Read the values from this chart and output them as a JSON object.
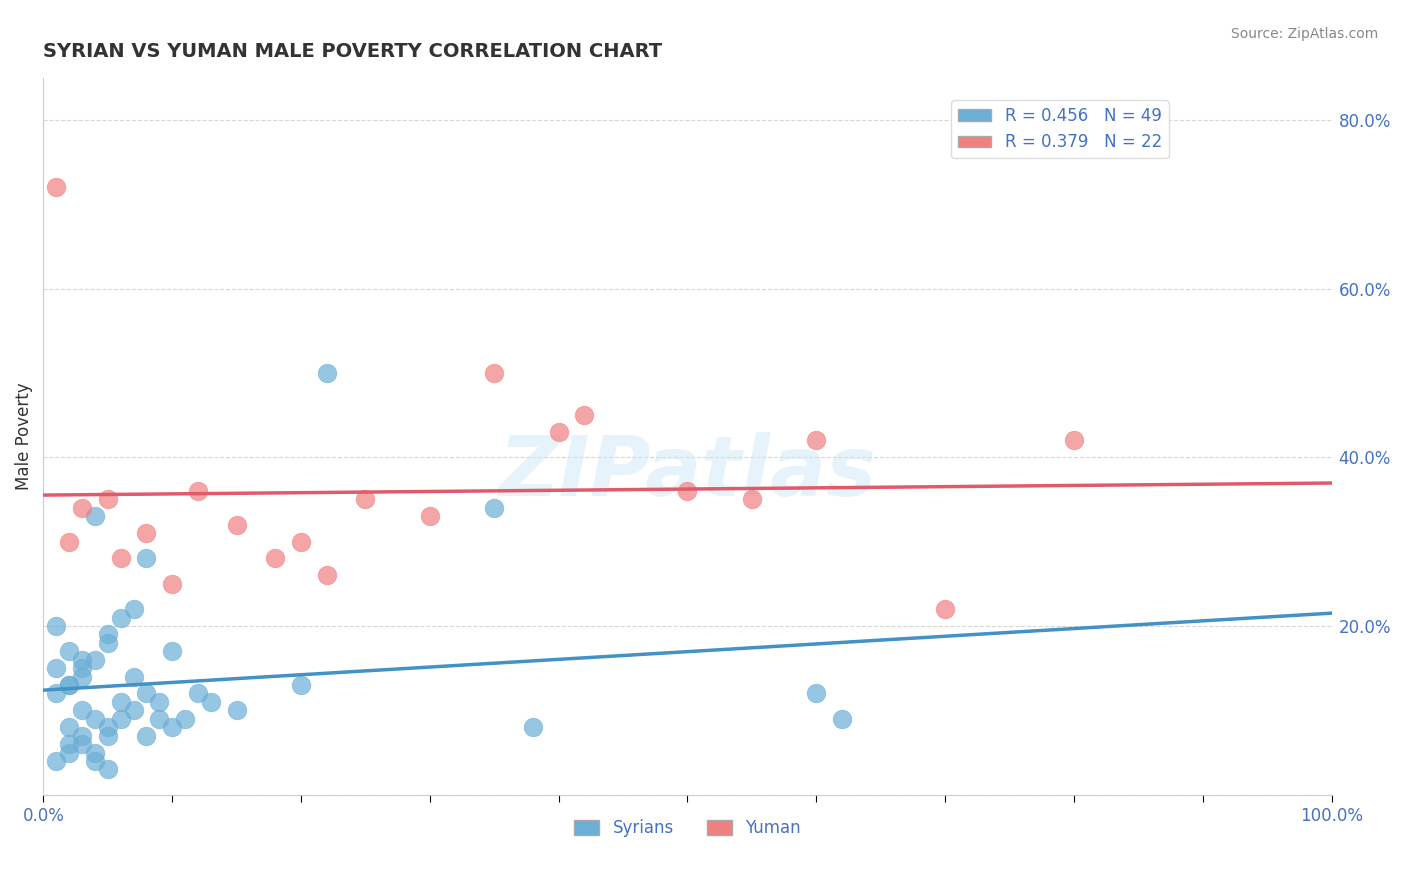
{
  "title": "SYRIAN VS YUMAN MALE POVERTY CORRELATION CHART",
  "source": "Source: ZipAtlas.com",
  "xlabel": "",
  "ylabel": "Male Poverty",
  "xlim": [
    0.0,
    1.0
  ],
  "ylim": [
    0.0,
    0.85
  ],
  "yticks": [
    0.0,
    0.2,
    0.4,
    0.6,
    0.8
  ],
  "ytick_labels": [
    "",
    "20.0%",
    "40.0%",
    "60.0%",
    "80.0%"
  ],
  "xticks": [
    0.0,
    0.1,
    0.2,
    0.3,
    0.4,
    0.5,
    0.6,
    0.7,
    0.8,
    0.9,
    1.0
  ],
  "xtick_labels": [
    "0.0%",
    "",
    "",
    "",
    "",
    "",
    "",
    "",
    "",
    "",
    "100.0%"
  ],
  "legend_r_blue": "R = 0.456   N = 49",
  "legend_r_pink": "R = 0.379   N = 22",
  "blue_color": "#6baed6",
  "pink_color": "#f08080",
  "blue_line_color": "#4292c6",
  "pink_line_color": "#e05a6a",
  "blue_dashed_color": "#a0c4e8",
  "syrians_x": [
    0.02,
    0.03,
    0.01,
    0.04,
    0.05,
    0.06,
    0.02,
    0.03,
    0.07,
    0.08,
    0.04,
    0.05,
    0.02,
    0.01,
    0.03,
    0.06,
    0.07,
    0.09,
    0.1,
    0.11,
    0.05,
    0.04,
    0.12,
    0.13,
    0.02,
    0.03,
    0.08,
    0.15,
    0.2,
    0.22,
    0.01,
    0.02,
    0.04,
    0.05,
    0.06,
    0.07,
    0.09,
    0.1,
    0.03,
    0.02,
    0.04,
    0.05,
    0.35,
    0.38,
    0.6,
    0.62,
    0.01,
    0.03,
    0.08
  ],
  "syrians_y": [
    0.08,
    0.1,
    0.12,
    0.09,
    0.07,
    0.11,
    0.13,
    0.15,
    0.14,
    0.12,
    0.05,
    0.08,
    0.06,
    0.04,
    0.07,
    0.09,
    0.1,
    0.11,
    0.08,
    0.09,
    0.18,
    0.16,
    0.12,
    0.11,
    0.13,
    0.14,
    0.28,
    0.1,
    0.13,
    0.5,
    0.15,
    0.17,
    0.33,
    0.19,
    0.21,
    0.22,
    0.09,
    0.17,
    0.06,
    0.05,
    0.04,
    0.03,
    0.34,
    0.08,
    0.12,
    0.09,
    0.2,
    0.16,
    0.07
  ],
  "yuman_x": [
    0.01,
    0.03,
    0.02,
    0.05,
    0.06,
    0.08,
    0.1,
    0.12,
    0.15,
    0.18,
    0.2,
    0.22,
    0.25,
    0.3,
    0.35,
    0.4,
    0.42,
    0.5,
    0.55,
    0.6,
    0.7,
    0.8
  ],
  "yuman_y": [
    0.72,
    0.34,
    0.3,
    0.35,
    0.28,
    0.31,
    0.25,
    0.36,
    0.32,
    0.28,
    0.3,
    0.26,
    0.35,
    0.33,
    0.5,
    0.43,
    0.45,
    0.36,
    0.35,
    0.42,
    0.22,
    0.42
  ],
  "watermark": "ZIPatlas",
  "background_color": "#ffffff",
  "grid_color": "#cccccc"
}
